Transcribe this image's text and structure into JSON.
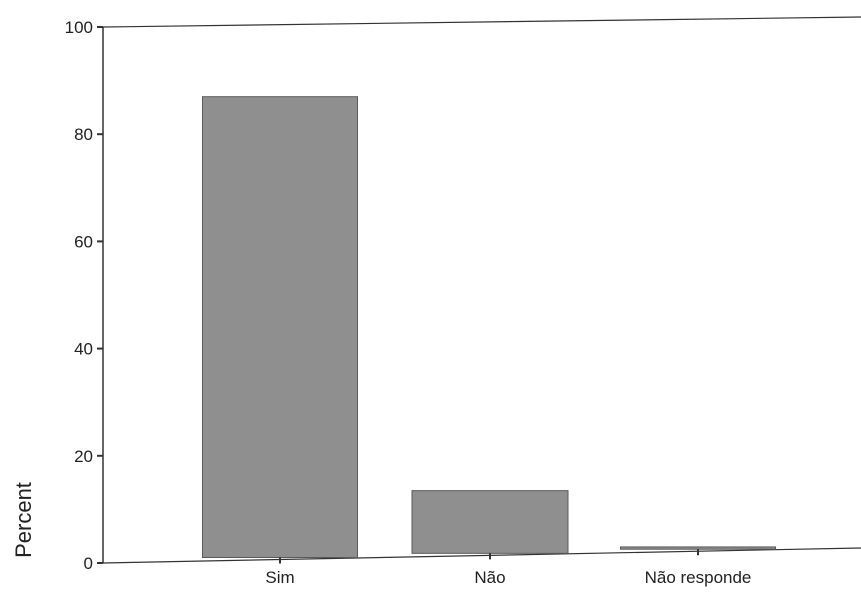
{
  "chart_data": {
    "type": "bar",
    "categories": [
      "Sim",
      "Não",
      "Não responde"
    ],
    "values": [
      87,
      13.5,
      3
    ],
    "ylabel": "Percent",
    "xlabel": "",
    "ylim": [
      0,
      100
    ],
    "yticks": [
      0,
      20,
      40,
      60,
      80,
      100
    ],
    "grid": false,
    "legend": "none"
  },
  "colors": {
    "bar": "#8f8f8f",
    "bar_edge": "#5a5a5a",
    "axis": "#333333",
    "background": "#ffffff"
  }
}
